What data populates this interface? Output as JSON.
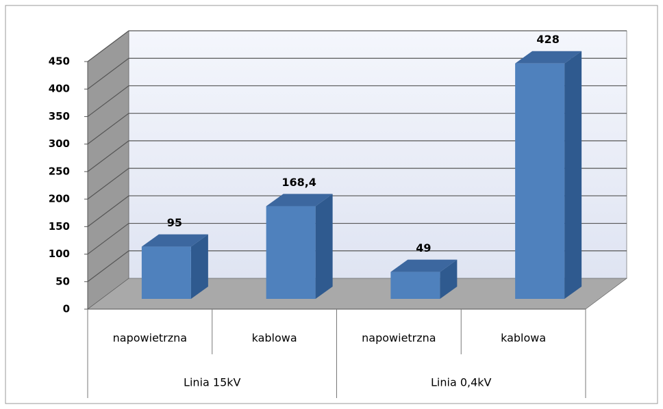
{
  "chart_data": {
    "type": "bar3d",
    "categories": [
      "napowietrzna",
      "kablowa",
      "napowietrzna",
      "kablowa"
    ],
    "groups": [
      "Linia 15kV",
      "Linia 0,4kV"
    ],
    "values": [
      95,
      168.4,
      49,
      428
    ],
    "value_labels": [
      "95",
      "168,4",
      "49",
      "428"
    ],
    "color": "#4f81bd",
    "ylim": [
      0,
      450
    ],
    "yticks": [
      0,
      50,
      100,
      150,
      200,
      250,
      300,
      350,
      400,
      450
    ],
    "grid": true
  }
}
